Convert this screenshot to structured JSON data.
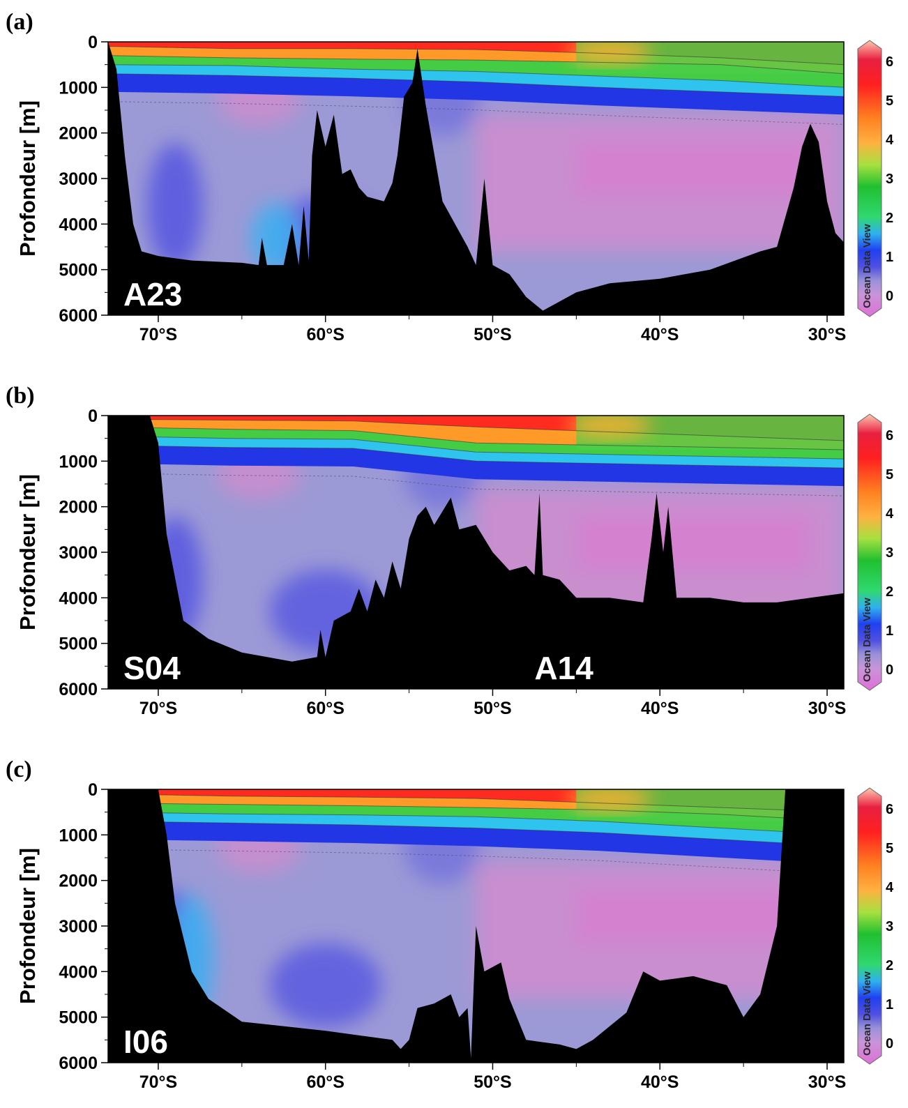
{
  "chart_data": [
    {
      "type": "heatmap",
      "panel_label": "(a)",
      "section": "A23",
      "ylabel": "Profondeur [m]",
      "xlabel": "",
      "xlim": [
        -73,
        -29
      ],
      "ylim": [
        6000,
        0
      ],
      "xticks": [
        "70°S",
        "60°S",
        "50°S",
        "40°S",
        "30°S"
      ],
      "yticks": [
        "0",
        "1000",
        "2000",
        "3000",
        "4000",
        "5000",
        "6000"
      ],
      "colorbar": {
        "ticks": [
          "0",
          "1",
          "2",
          "3",
          "4",
          "5",
          "6"
        ],
        "range": [
          0,
          6
        ]
      },
      "watermark": "Ocean Data View",
      "bathymetry": [
        [
          -73,
          0
        ],
        [
          -72.5,
          600
        ],
        [
          -72,
          2500
        ],
        [
          -71.5,
          4000
        ],
        [
          -71,
          4600
        ],
        [
          -70,
          4700
        ],
        [
          -68,
          4800
        ],
        [
          -65,
          4850
        ],
        [
          -64,
          4900
        ],
        [
          -63.8,
          4300
        ],
        [
          -63.5,
          4900
        ],
        [
          -62.5,
          4900
        ],
        [
          -62,
          4000
        ],
        [
          -61.6,
          4900
        ],
        [
          -61.3,
          3600
        ],
        [
          -61,
          4800
        ],
        [
          -60.8,
          2500
        ],
        [
          -60.5,
          1500
        ],
        [
          -60,
          2300
        ],
        [
          -59.5,
          1600
        ],
        [
          -59,
          2900
        ],
        [
          -58.5,
          2800
        ],
        [
          -58,
          3200
        ],
        [
          -57.5,
          3400
        ],
        [
          -56.5,
          3500
        ],
        [
          -56,
          3100
        ],
        [
          -55.7,
          2500
        ],
        [
          -55.3,
          1200
        ],
        [
          -54.8,
          900
        ],
        [
          -54.5,
          150
        ],
        [
          -54,
          1400
        ],
        [
          -53,
          3500
        ],
        [
          -51.5,
          4500
        ],
        [
          -51,
          4900
        ],
        [
          -50.5,
          3000
        ],
        [
          -50,
          4900
        ],
        [
          -49,
          5100
        ],
        [
          -48,
          5600
        ],
        [
          -47,
          5900
        ],
        [
          -45,
          5500
        ],
        [
          -43,
          5300
        ],
        [
          -40,
          5200
        ],
        [
          -37,
          5000
        ],
        [
          -34,
          4600
        ],
        [
          -33,
          4500
        ],
        [
          -32,
          3200
        ],
        [
          -31.5,
          2300
        ],
        [
          -31,
          1800
        ],
        [
          -30.5,
          2200
        ],
        [
          -30,
          3500
        ],
        [
          -29.5,
          4200
        ],
        [
          -29,
          4400
        ]
      ],
      "isopycnals_m": [
        [
          100,
          150,
          150,
          170,
          250,
          350,
          500
        ],
        [
          300,
          350,
          380,
          400,
          450,
          500,
          700
        ],
        [
          500,
          520,
          600,
          650,
          750,
          850,
          1000
        ],
        [
          700,
          740,
          800,
          880,
          1000,
          1100,
          1200
        ]
      ]
    },
    {
      "type": "heatmap",
      "panel_label": "(b)",
      "section": "S04",
      "section2": "A14",
      "ylabel": "Profondeur [m]",
      "xlabel": "",
      "xlim": [
        -73,
        -29
      ],
      "ylim": [
        6000,
        0
      ],
      "xticks": [
        "70°S",
        "60°S",
        "50°S",
        "40°S",
        "30°S"
      ],
      "yticks": [
        "0",
        "1000",
        "2000",
        "3000",
        "4000",
        "5000",
        "6000"
      ],
      "colorbar": {
        "ticks": [
          "0",
          "1",
          "2",
          "3",
          "4",
          "5",
          "6"
        ],
        "range": [
          0,
          6
        ]
      },
      "watermark": "Ocean Data View",
      "bathymetry": [
        [
          -73,
          0
        ],
        [
          -70.5,
          0
        ],
        [
          -70,
          600
        ],
        [
          -69.5,
          2600
        ],
        [
          -68.5,
          4500
        ],
        [
          -67,
          4900
        ],
        [
          -65,
          5200
        ],
        [
          -62,
          5400
        ],
        [
          -60.5,
          5300
        ],
        [
          -60.3,
          4700
        ],
        [
          -60,
          5300
        ],
        [
          -59.5,
          4500
        ],
        [
          -58.5,
          4300
        ],
        [
          -58,
          3800
        ],
        [
          -57.5,
          4300
        ],
        [
          -57,
          3600
        ],
        [
          -56.5,
          4000
        ],
        [
          -56,
          3200
        ],
        [
          -55.5,
          3800
        ],
        [
          -55,
          2700
        ],
        [
          -54.5,
          2200
        ],
        [
          -54,
          2000
        ],
        [
          -53.5,
          2400
        ],
        [
          -53,
          2100
        ],
        [
          -52.5,
          1800
        ],
        [
          -52,
          2500
        ],
        [
          -51,
          2400
        ],
        [
          -50,
          3000
        ],
        [
          -49,
          3400
        ],
        [
          -48,
          3300
        ],
        [
          -47.5,
          3500
        ],
        [
          -47.2,
          1700
        ],
        [
          -47,
          3500
        ],
        [
          -46,
          3600
        ],
        [
          -45,
          4000
        ],
        [
          -43,
          4000
        ],
        [
          -41,
          4100
        ],
        [
          -40.5,
          2700
        ],
        [
          -40.2,
          1700
        ],
        [
          -39.8,
          3000
        ],
        [
          -39.5,
          2000
        ],
        [
          -39,
          4000
        ],
        [
          -37,
          4000
        ],
        [
          -35,
          4100
        ],
        [
          -33,
          4100
        ],
        [
          -31,
          4000
        ],
        [
          -29,
          3900
        ]
      ],
      "isopycnals_m": [
        [
          80,
          100,
          120,
          250,
          350,
          450,
          550
        ],
        [
          250,
          300,
          330,
          600,
          650,
          700,
          750
        ],
        [
          450,
          500,
          520,
          800,
          850,
          900,
          950
        ],
        [
          650,
          700,
          720,
          1000,
          1050,
          1100,
          1150
        ]
      ]
    },
    {
      "type": "heatmap",
      "panel_label": "(c)",
      "section": "I06",
      "ylabel": "Profondeur [m]",
      "xlabel": "",
      "xlim": [
        -73,
        -29
      ],
      "ylim": [
        6000,
        0
      ],
      "xticks": [
        "70°S",
        "60°S",
        "50°S",
        "40°S",
        "30°S"
      ],
      "yticks": [
        "0",
        "1000",
        "2000",
        "3000",
        "4000",
        "5000",
        "6000"
      ],
      "colorbar": {
        "ticks": [
          "0",
          "1",
          "2",
          "3",
          "4",
          "5",
          "6"
        ],
        "range": [
          0,
          6
        ]
      },
      "watermark": "Ocean Data View",
      "bathymetry": [
        [
          -73,
          0
        ],
        [
          -70,
          0
        ],
        [
          -69.5,
          1000
        ],
        [
          -69,
          2500
        ],
        [
          -68,
          4000
        ],
        [
          -67,
          4600
        ],
        [
          -65,
          5100
        ],
        [
          -60,
          5300
        ],
        [
          -56,
          5500
        ],
        [
          -55.5,
          5700
        ],
        [
          -55,
          5500
        ],
        [
          -54.5,
          4800
        ],
        [
          -53.5,
          4700
        ],
        [
          -52.5,
          4500
        ],
        [
          -52,
          5000
        ],
        [
          -51.5,
          4800
        ],
        [
          -51.3,
          5900
        ],
        [
          -51,
          3000
        ],
        [
          -50.5,
          4000
        ],
        [
          -49.5,
          3800
        ],
        [
          -49,
          4600
        ],
        [
          -48,
          5500
        ],
        [
          -46,
          5600
        ],
        [
          -45,
          5700
        ],
        [
          -44,
          5500
        ],
        [
          -42,
          4900
        ],
        [
          -41,
          4000
        ],
        [
          -40,
          4200
        ],
        [
          -38,
          4100
        ],
        [
          -36,
          4300
        ],
        [
          -35,
          5000
        ],
        [
          -34,
          4500
        ],
        [
          -33,
          3000
        ],
        [
          -32.5,
          0
        ],
        [
          -29,
          0
        ]
      ],
      "isopycnals_m": [
        [
          100,
          150,
          170,
          200,
          300,
          400,
          500
        ],
        [
          300,
          330,
          360,
          400,
          450,
          550,
          700
        ],
        [
          500,
          540,
          560,
          600,
          700,
          850,
          1000
        ],
        [
          700,
          740,
          780,
          850,
          950,
          1100,
          1250
        ]
      ]
    }
  ]
}
